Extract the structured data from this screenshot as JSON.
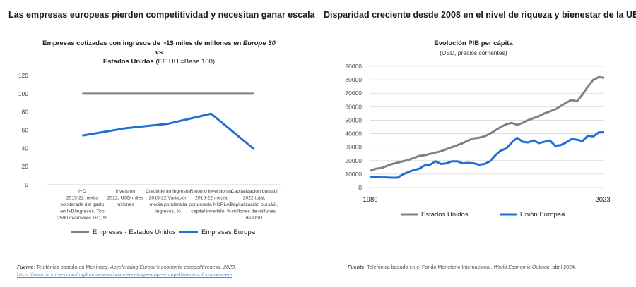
{
  "left_panel": {
    "title": "Las empresas europeas pierden competitividad y necesitan ganar escala",
    "chart_title_a": "Empresas cotizadas con ingresos de >1$ miles de millones en ",
    "chart_title_b": "Europe 30",
    "chart_title_c": " vs",
    "chart_title_d": "Estados Unidos",
    "chart_title_e": " (EE.UU.=Base 100)",
    "footnote_label": "Fuente",
    "footnote_a": ": Telefónica basado en McKinsey, ",
    "footnote_b": "Accelerating Europe's economic competitiveness, 2023",
    "footnote_c": ",",
    "footnote_link": "https://www.mckinsey.com/mgi/our-research/accelerating-europe-competitiveness-for-a-new-era"
  },
  "right_panel": {
    "title": "Disparidad creciente desde 2008 en el nivel de riqueza y bienestar de la UE",
    "chart_title": "Evolución PIB per cápita",
    "chart_subtitle": "(USD, precios corrientes)",
    "footnote_label": "Fuente",
    "footnote_a": ": Telefónica basado en el Fondo Monetario Internacional, ",
    "footnote_b": "World Economic Outlook",
    "footnote_c": ", abril 2024."
  },
  "chart_data": [
    {
      "type": "line",
      "title": "Empresas cotizadas con ingresos de >1$ miles de millones en Europe 30 vs Estados Unidos (EE.UU.=Base 100)",
      "categories": [
        [
          "I+D",
          "2015-22  media",
          "ponderada del gasto",
          "en I+D/ingresos, Top",
          "2500 inversores I+D, %"
        ],
        [
          "Inversión",
          "2022, USD miles",
          "millones"
        ],
        [
          "Crecimiento ingresos",
          "2015-22 Variación",
          "media ponderada",
          "ingresos, %"
        ],
        [
          "Retorno inversiones",
          "2015-22 media",
          "ponderada NOPLAT/",
          "capital invertido, %"
        ],
        [
          "Capitalización bursátil",
          "2022 total,",
          "capitalización bursátil,",
          "millones de millones",
          "de USD"
        ]
      ],
      "series": [
        {
          "name": "Empresas - Estados Unidos",
          "color": "#7f8086",
          "values": [
            100,
            100,
            100,
            100,
            100
          ]
        },
        {
          "name": "Empresas Europa",
          "color": "#1f6fd6",
          "values": [
            54,
            62,
            67,
            78,
            39
          ]
        }
      ],
      "ylim": [
        0,
        120
      ],
      "yticks": [
        "0",
        "20",
        "40",
        "60",
        "80",
        "100",
        "120"
      ],
      "grid": false,
      "legend": "bottom"
    },
    {
      "type": "line",
      "title": "Evolución PIB per cápita",
      "subtitle": "(USD, precios corrientes)",
      "x_start": 1980,
      "x_end": 2023,
      "x_tick_labels": [
        "1980",
        "2023"
      ],
      "series": [
        {
          "name": "Estados Unidos",
          "color": "#7f8086",
          "values": [
            12500,
            14000,
            14500,
            16000,
            17500,
            18500,
            19500,
            20500,
            22000,
            23500,
            24000,
            25000,
            26000,
            27000,
            28500,
            30000,
            31500,
            33000,
            35000,
            36500,
            37000,
            38000,
            40000,
            42500,
            45000,
            47000,
            48000,
            46500,
            48000,
            50000,
            51500,
            53000,
            55000,
            56500,
            58000,
            60500,
            63000,
            65000,
            64000,
            69000,
            75000,
            80000,
            82000,
            81500
          ]
        },
        {
          "name": "Unión Europea",
          "color": "#1f6fd6",
          "values": [
            8200,
            7800,
            7600,
            7500,
            7300,
            7300,
            9800,
            11500,
            13000,
            14000,
            16500,
            17000,
            19500,
            17500,
            18000,
            19500,
            19500,
            18000,
            18300,
            18000,
            17000,
            17500,
            19500,
            24000,
            27500,
            29000,
            33500,
            37000,
            34000,
            33500,
            35000,
            33000,
            34000,
            35000,
            31000,
            31500,
            33500,
            36000,
            35500,
            34500,
            38500,
            38000,
            41000,
            41000
          ]
        }
      ],
      "ylim": [
        0,
        90000
      ],
      "yticks": [
        "0",
        "10000",
        "20000",
        "30000",
        "40000",
        "50000",
        "60000",
        "70000",
        "80000",
        "90000"
      ],
      "grid": true,
      "legend": "bottom"
    }
  ]
}
